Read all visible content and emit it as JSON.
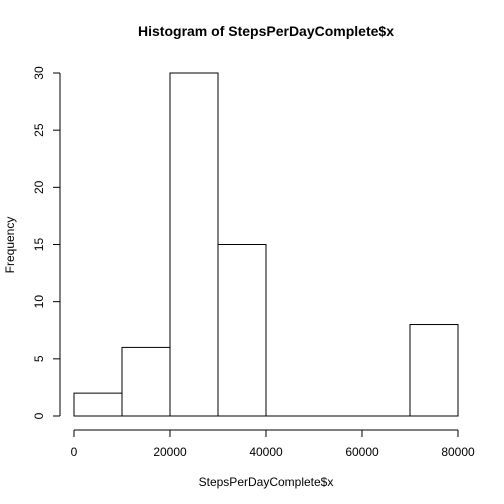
{
  "chart_data": {
    "type": "bar",
    "title": "Histogram of StepsPerDayComplete$x",
    "xlabel": "StepsPerDayComplete$x",
    "ylabel": "Frequency",
    "bins": [
      {
        "start": 0,
        "end": 10000,
        "count": 2
      },
      {
        "start": 10000,
        "end": 20000,
        "count": 6
      },
      {
        "start": 20000,
        "end": 30000,
        "count": 30
      },
      {
        "start": 30000,
        "end": 40000,
        "count": 15
      },
      {
        "start": 40000,
        "end": 50000,
        "count": 0
      },
      {
        "start": 50000,
        "end": 60000,
        "count": 0
      },
      {
        "start": 60000,
        "end": 70000,
        "count": 0
      },
      {
        "start": 70000,
        "end": 80000,
        "count": 8
      }
    ],
    "xlim": [
      0,
      80000
    ],
    "ylim": [
      0,
      30
    ],
    "x_ticks": [
      0,
      20000,
      40000,
      60000,
      80000
    ],
    "y_ticks": [
      0,
      5,
      10,
      15,
      20,
      25,
      30
    ],
    "grid": false,
    "colors": {
      "bar_fill": "#ffffff",
      "bar_stroke": "#000000"
    }
  }
}
